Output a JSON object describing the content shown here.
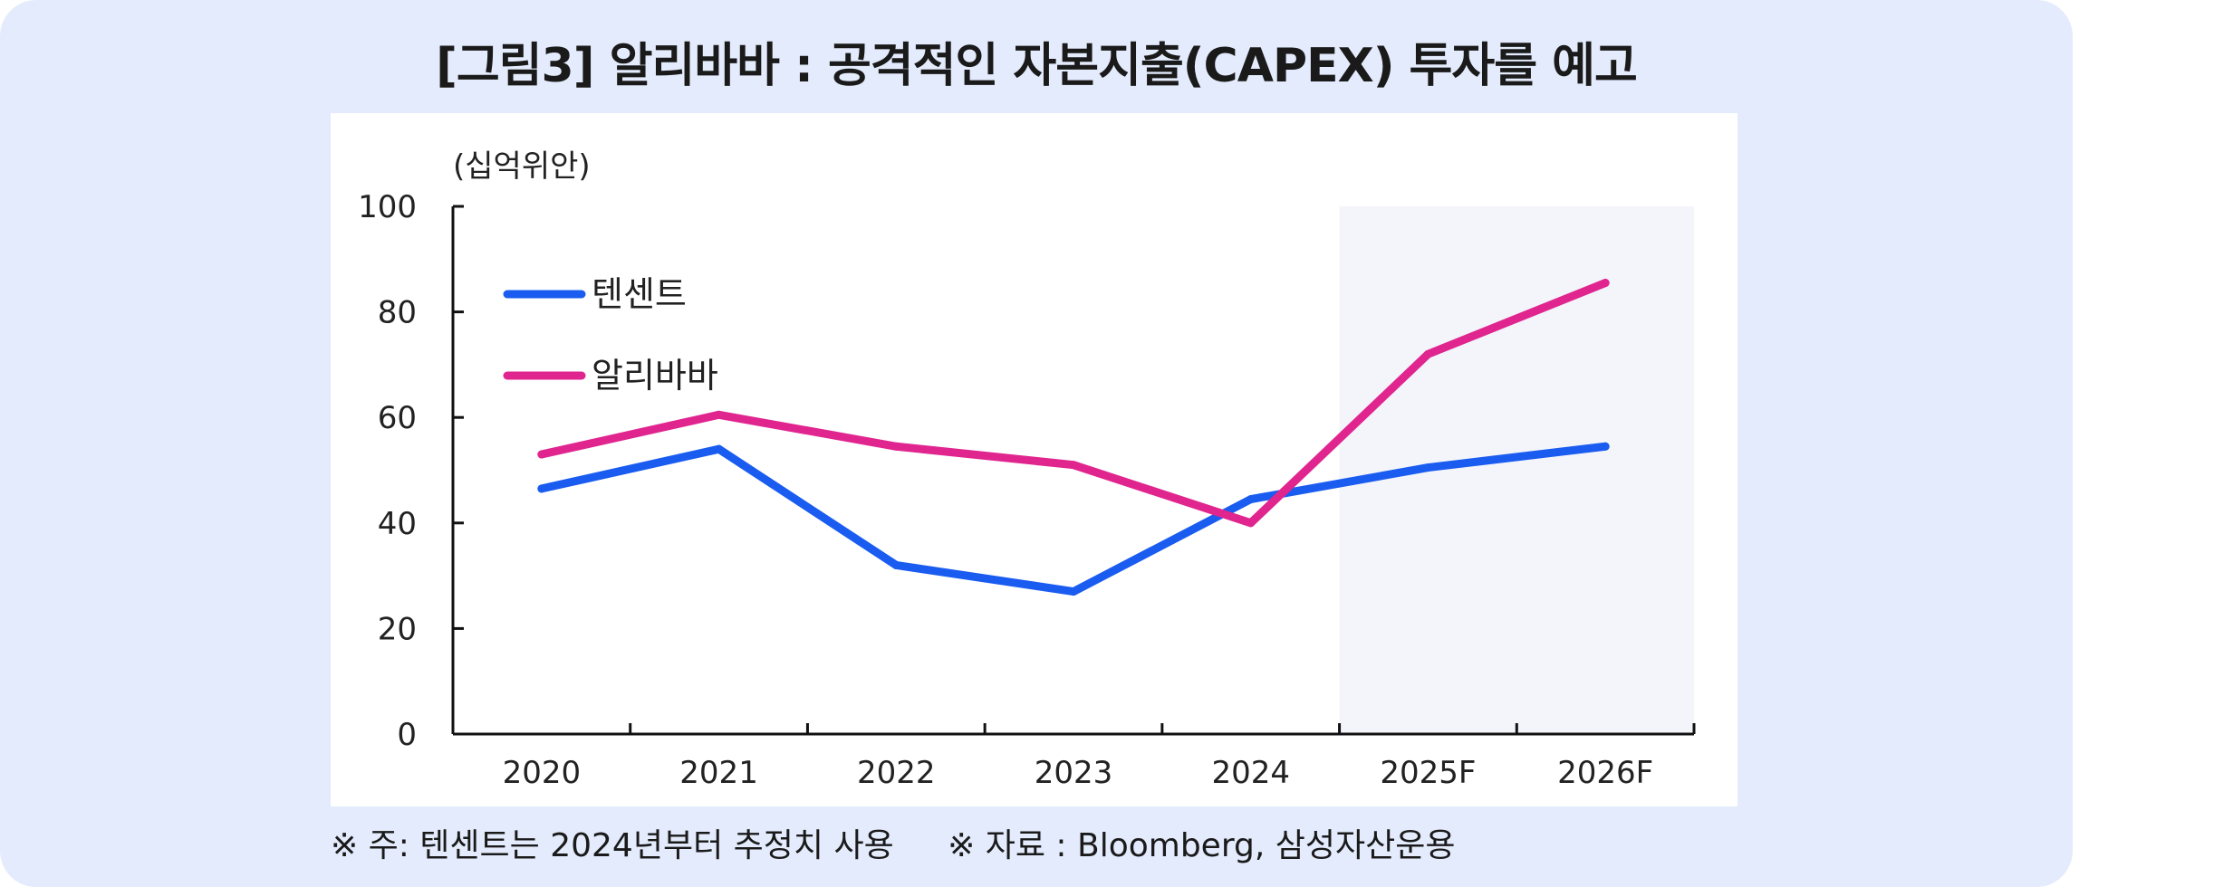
{
  "title": "[그림3] 알리바바 : 공격적인 자본지출(CAPEX) 투자를 예고",
  "footer": {
    "note": "※ 주: 텐센트는 2024년부터 추정치 사용",
    "source": "※ 자료 : Bloomberg, 삼성자산운용"
  },
  "colors": {
    "panel_bg": "#e3ebfc",
    "tencent": "#1a5cf0",
    "alibaba": "#e0258f",
    "forecast_shade": "#f3f5fb"
  },
  "chart_data": {
    "type": "line",
    "title": "",
    "xlabel": "",
    "ylabel": "(십억위안)",
    "categories": [
      "2020",
      "2021",
      "2022",
      "2023",
      "2024",
      "2025F",
      "2026F"
    ],
    "series": [
      {
        "name": "텐센트",
        "values": [
          46.5,
          54,
          32,
          27,
          44.5,
          50.5,
          54.5
        ]
      },
      {
        "name": "알리바바",
        "values": [
          53,
          60.5,
          54.5,
          51,
          40,
          72,
          85.5
        ]
      }
    ],
    "ylim": [
      0,
      100
    ],
    "yticks": [
      0,
      20,
      40,
      60,
      80,
      100
    ],
    "forecast_from_index": 5,
    "grid": false,
    "legend_position": "top-left"
  }
}
